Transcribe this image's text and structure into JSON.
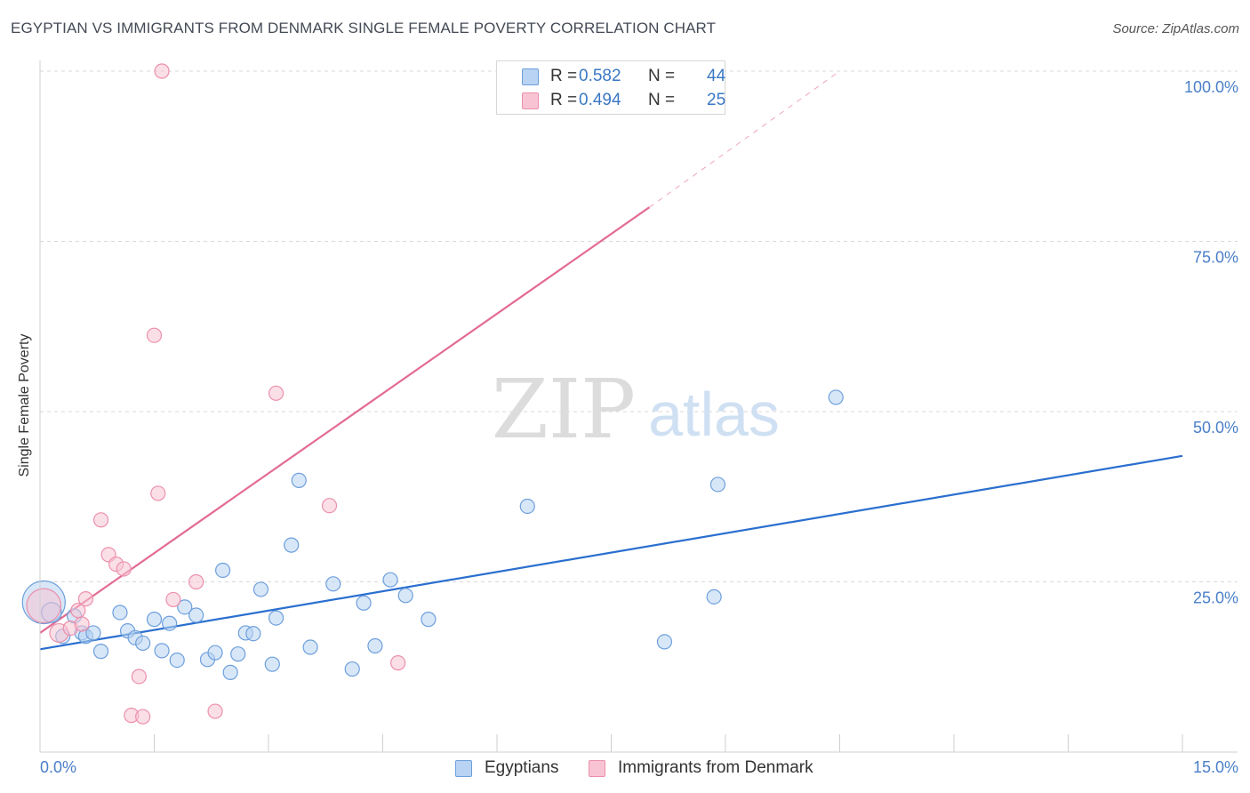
{
  "header": {
    "title": "EGYPTIAN VS IMMIGRANTS FROM DENMARK SINGLE FEMALE POVERTY CORRELATION CHART",
    "source": "Source: ZipAtlas.com"
  },
  "watermark": {
    "zip": "ZIP",
    "atlas": "atlas"
  },
  "colors": {
    "blue_fill": "#b8d3f3",
    "blue_stroke": "#6d9fdc",
    "blue_line": "#2a6fcf",
    "pink_fill": "#f8c4d3",
    "pink_stroke": "#ec8fab",
    "pink_line": "#e36b93",
    "tick_label": "#4a7fc8",
    "grid": "#d9d9d9"
  },
  "legend": {
    "rows": [
      {
        "r_label": "R =",
        "r_value": "0.582",
        "n_label": "N =",
        "n_value": "44"
      },
      {
        "r_label": "R =",
        "r_value": "0.494",
        "n_label": "N =",
        "n_value": "25"
      }
    ]
  },
  "chart_data": {
    "type": "scatter",
    "title": "EGYPTIAN VS IMMIGRANTS FROM DENMARK SINGLE FEMALE POVERTY CORRELATION CHART",
    "xlabel": "",
    "ylabel": "Single Female Poverty",
    "xlim": [
      0,
      15
    ],
    "ylim": [
      0,
      100
    ],
    "x_tick_labels": [
      "0.0%",
      "15.0%"
    ],
    "y_ticks": [
      25,
      50,
      75,
      100
    ],
    "y_tick_labels": [
      "25.0%",
      "50.0%",
      "75.0%",
      "100.0%"
    ],
    "grid": true,
    "series": [
      {
        "name": "Egyptians",
        "r": 0.582,
        "n": 44,
        "trend": {
          "x0": 0,
          "y0": 15.1,
          "x1": 15,
          "y1": 43.5
        },
        "points": [
          [
            0.05,
            22.0,
            3
          ],
          [
            0.15,
            20.5,
            1.4
          ],
          [
            0.3,
            17.0,
            1
          ],
          [
            0.45,
            20.0,
            1
          ],
          [
            0.55,
            17.5,
            1
          ],
          [
            0.6,
            17.0,
            1
          ],
          [
            0.7,
            17.5,
            1
          ],
          [
            0.8,
            14.8,
            1
          ],
          [
            1.05,
            20.5,
            1
          ],
          [
            1.15,
            17.8,
            1
          ],
          [
            1.25,
            16.8,
            1
          ],
          [
            1.35,
            16.0,
            1
          ],
          [
            1.5,
            19.5,
            1
          ],
          [
            1.6,
            14.9,
            1
          ],
          [
            1.7,
            18.9,
            1
          ],
          [
            1.8,
            13.5,
            1
          ],
          [
            1.9,
            21.3,
            1
          ],
          [
            2.05,
            20.1,
            1
          ],
          [
            2.2,
            13.6,
            1
          ],
          [
            2.3,
            14.6,
            1
          ],
          [
            2.4,
            26.7,
            1
          ],
          [
            2.5,
            11.7,
            1
          ],
          [
            2.6,
            14.4,
            1
          ],
          [
            2.7,
            17.5,
            1
          ],
          [
            2.8,
            17.4,
            1
          ],
          [
            2.9,
            23.9,
            1
          ],
          [
            3.05,
            12.9,
            1
          ],
          [
            3.1,
            19.7,
            1
          ],
          [
            3.3,
            30.4,
            1
          ],
          [
            3.4,
            39.9,
            1
          ],
          [
            3.55,
            15.4,
            1
          ],
          [
            3.85,
            24.7,
            1
          ],
          [
            4.1,
            12.2,
            1
          ],
          [
            4.25,
            21.9,
            1
          ],
          [
            4.4,
            15.6,
            1
          ],
          [
            4.6,
            25.3,
            1
          ],
          [
            4.8,
            23.0,
            1
          ],
          [
            5.1,
            19.5,
            1
          ],
          [
            6.4,
            36.1,
            1
          ],
          [
            8.2,
            16.2,
            1
          ],
          [
            8.85,
            22.8,
            1
          ],
          [
            8.9,
            39.3,
            1
          ],
          [
            10.45,
            52.1,
            1
          ]
        ]
      },
      {
        "name": "Immigrants from Denmark",
        "r": 0.494,
        "n": 25,
        "trend": {
          "x0": 0,
          "y0": 17.5,
          "x1": 8.0,
          "y1": 80.0,
          "dash_x1": 10.5,
          "dash_y1": 100.0
        },
        "points": [
          [
            0.05,
            21.5,
            2.4
          ],
          [
            0.25,
            17.5,
            1.3
          ],
          [
            0.4,
            18.2,
            1
          ],
          [
            0.5,
            20.8,
            1
          ],
          [
            0.6,
            22.5,
            1
          ],
          [
            0.55,
            18.8,
            1
          ],
          [
            0.8,
            34.1,
            1
          ],
          [
            0.9,
            29.0,
            1
          ],
          [
            1.0,
            27.6,
            1
          ],
          [
            1.1,
            26.9,
            1
          ],
          [
            1.2,
            5.4,
            1
          ],
          [
            1.3,
            11.1,
            1
          ],
          [
            1.35,
            5.2,
            1
          ],
          [
            1.5,
            61.2,
            1
          ],
          [
            1.55,
            38.0,
            1
          ],
          [
            1.6,
            100.0,
            1
          ],
          [
            1.75,
            22.4,
            1
          ],
          [
            2.05,
            25.0,
            1
          ],
          [
            2.3,
            6.0,
            1
          ],
          [
            3.1,
            52.7,
            1
          ],
          [
            3.8,
            36.2,
            1
          ],
          [
            4.7,
            13.1,
            1
          ]
        ]
      }
    ]
  }
}
